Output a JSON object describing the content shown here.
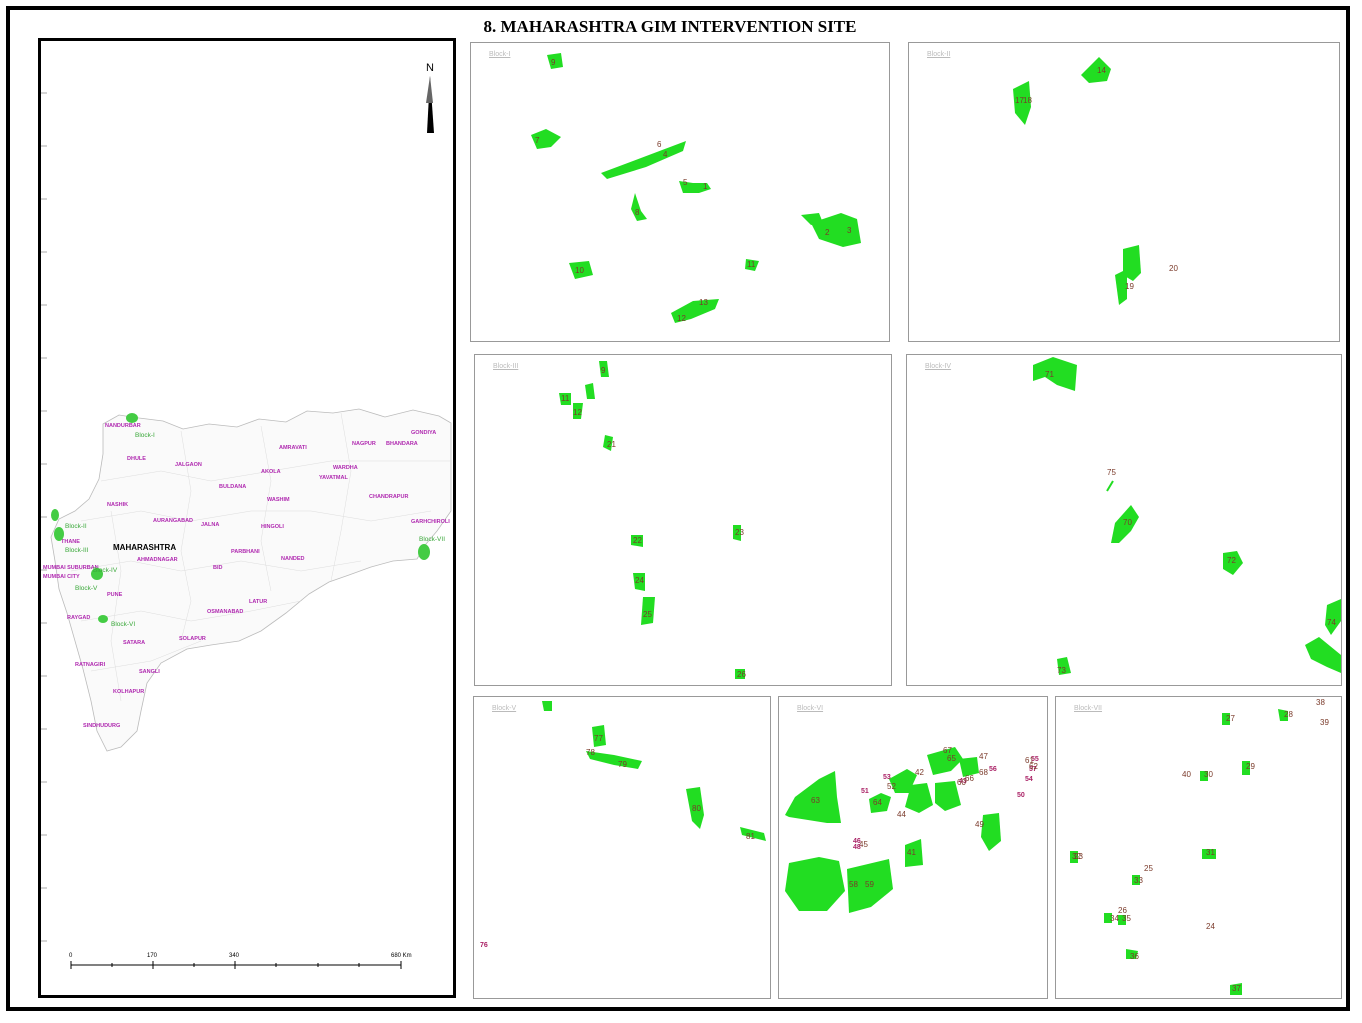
{
  "title": "8. MAHARASHTRA GIM INTERVENTION SITE",
  "overview": {
    "north_label": "N",
    "state_label": "MAHARASHTRA",
    "districts": [
      "NANDURBAR",
      "DHULE",
      "JALGAON",
      "AMRAVATI",
      "NAGPUR",
      "BHANDARA",
      "GONDIYA",
      "AKOLA",
      "WARDHA",
      "BULDANA",
      "WASHIM",
      "YAVATMAL",
      "CHANDRAPUR",
      "NASHIK",
      "AURANGABAD",
      "JALNA",
      "HINGOLI",
      "GARHCHIROLI",
      "THANE",
      "AHMADNAGAR",
      "PARBHANI",
      "NANDED",
      "MUMBAI SUBURBAN",
      "MUMBAI CITY",
      "BID",
      "PUNE",
      "LATUR",
      "OSMANABAD",
      "RAYGAD",
      "SATARA",
      "SOLAPUR",
      "RATNAGIRI",
      "SANGLI",
      "KOLHAPUR",
      "SINDHUDURG"
    ],
    "block_labels": [
      "Block-I",
      "Block-II",
      "Block-III",
      "Block-IV",
      "Block-V",
      "Block-VI",
      "Block-VII"
    ],
    "scale": {
      "ticks": [
        "0",
        "170",
        "340",
        "680 Km"
      ]
    }
  },
  "panels": [
    {
      "label": "Block-I",
      "sites": [
        "9",
        "7",
        "6",
        "4",
        "3",
        "2",
        "1",
        "5",
        "8",
        "10",
        "11",
        "12",
        "13"
      ]
    },
    {
      "label": "Block-II",
      "sites": [
        "14",
        "17",
        "18",
        "19",
        "20"
      ]
    },
    {
      "label": "Block-III",
      "sites": [
        "9",
        "11",
        "12",
        "21",
        "22",
        "23",
        "24",
        "25",
        "26"
      ]
    },
    {
      "label": "Block-IV",
      "sites": [
        "71",
        "75",
        "70",
        "72",
        "73",
        "74"
      ]
    },
    {
      "label": "Block-V",
      "sites": [
        "76",
        "77",
        "78",
        "79",
        "80",
        "81"
      ],
      "outside": [
        "76"
      ]
    },
    {
      "label": "Block-VI",
      "sites": [
        "63",
        "64",
        "41",
        "42",
        "43",
        "44",
        "45",
        "46",
        "47",
        "48",
        "49",
        "50",
        "51",
        "52",
        "53",
        "54",
        "55",
        "56",
        "57",
        "58",
        "59",
        "60",
        "61",
        "62",
        "65",
        "66",
        "67",
        "68"
      ],
      "outside": [
        "56",
        "55",
        "57",
        "54",
        "50",
        "51",
        "53",
        "43",
        "46",
        "48"
      ]
    },
    {
      "label": "Block-VII",
      "sites": [
        "27",
        "28",
        "29",
        "30",
        "31",
        "32",
        "33",
        "34",
        "35",
        "36",
        "37",
        "38",
        "39",
        "40",
        "25",
        "26",
        "24",
        "23"
      ]
    }
  ],
  "colors": {
    "site_fill": "#22dd22",
    "district_text": "#b02ab0",
    "block_text": "#3aa83a",
    "frame": "#000000"
  }
}
